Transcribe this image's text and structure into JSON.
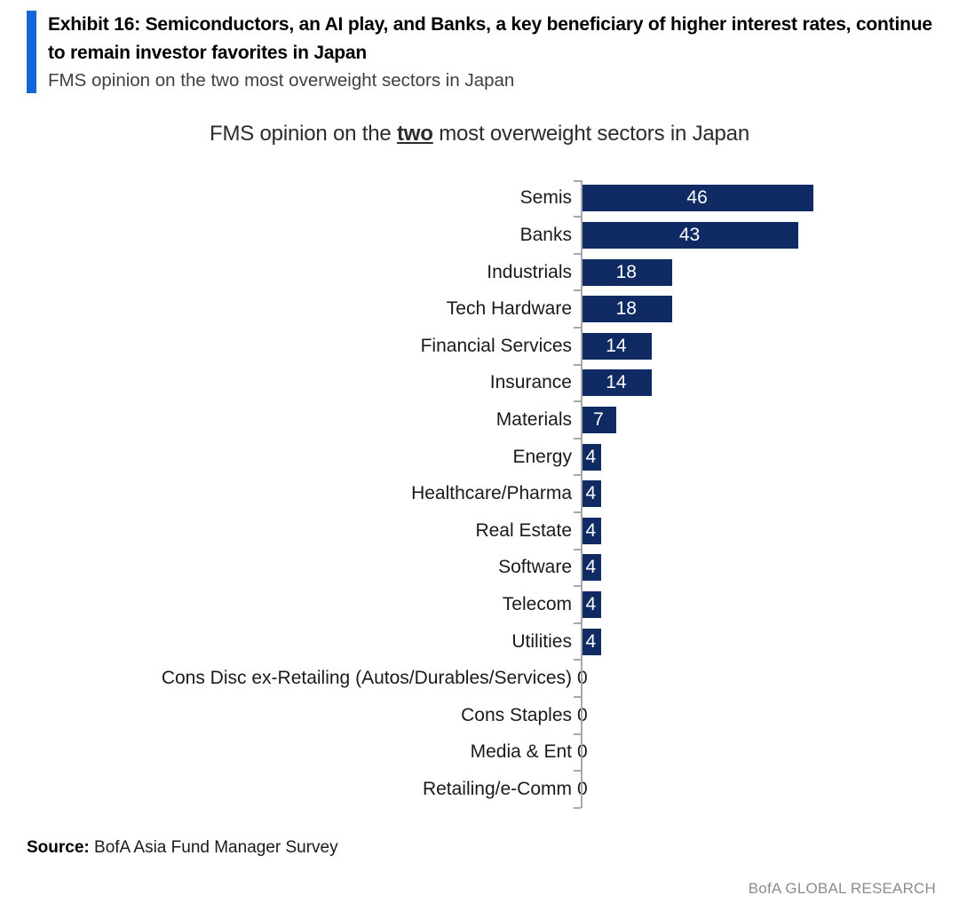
{
  "header": {
    "exhibit_title": "Exhibit 16: Semiconductors, an AI play, and Banks, a key beneficiary of higher interest rates, continue to remain investor favorites in Japan",
    "subtitle": "FMS opinion on the two most overweight sectors in Japan"
  },
  "chart_data": {
    "type": "bar",
    "orientation": "horizontal",
    "title": "FMS opinion on the two most overweight sectors in Japan",
    "title_prefix": "FMS opinion on the ",
    "title_emphasis": "two",
    "title_suffix": " most overweight sectors in Japan",
    "categories": [
      "Semis",
      "Banks",
      "Industrials",
      "Tech Hardware",
      "Financial Services",
      "Insurance",
      "Materials",
      "Energy",
      "Healthcare/Pharma",
      "Real Estate",
      "Software",
      "Telecom",
      "Utilities",
      "Cons Disc ex-Retailing (Autos/Durables/Services)",
      "Cons Staples",
      "Media & Ent",
      "Retailing/e-Comm"
    ],
    "values": [
      46,
      43,
      18,
      18,
      14,
      14,
      7,
      4,
      4,
      4,
      4,
      4,
      4,
      0,
      0,
      0,
      0
    ],
    "xlim": [
      0,
      50
    ],
    "grid": false,
    "legend": false,
    "bar_color": "#102a63",
    "value_label_color": "#ffffff",
    "zero_label_color": "#1a1a1a",
    "axis_color": "#a8a8a8"
  },
  "footer": {
    "source_label": "Source:",
    "source_text": " BofA Asia Fund Manager Survey",
    "brand": "BofA GLOBAL RESEARCH"
  },
  "accent_color": "#1565d6"
}
